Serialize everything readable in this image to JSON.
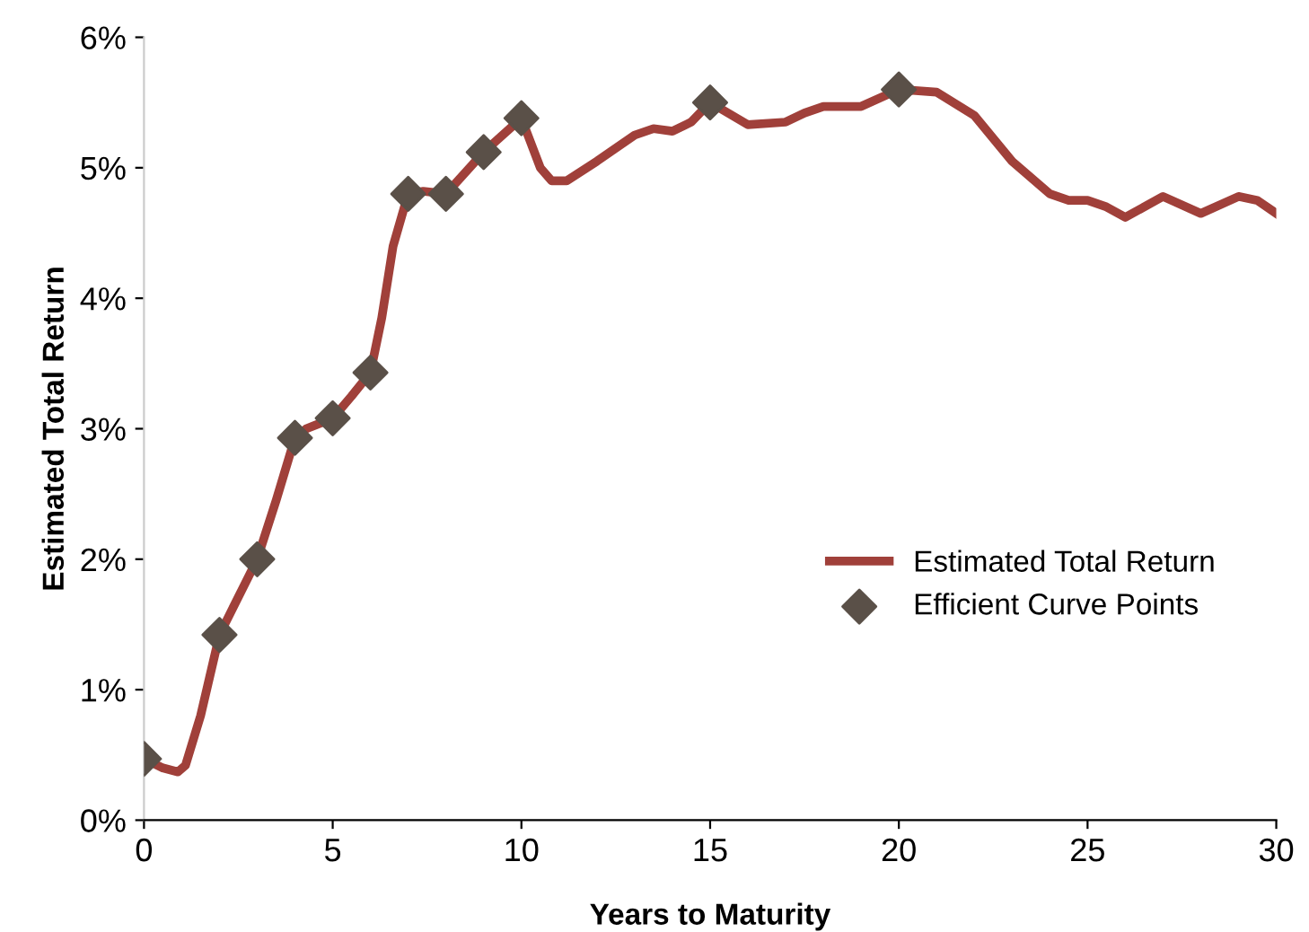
{
  "chart_data": {
    "type": "line",
    "xlabel": "Years to Maturity",
    "ylabel": "Estimated Total Return",
    "xlim": [
      0,
      30
    ],
    "xticks": [
      0,
      5,
      10,
      15,
      20,
      25,
      30
    ],
    "ylim": [
      0,
      6
    ],
    "yticks": [
      {
        "value": 0,
        "label": "0%"
      },
      {
        "value": 1,
        "label": "1%"
      },
      {
        "value": 2,
        "label": "2%"
      },
      {
        "value": 3,
        "label": "3%"
      },
      {
        "value": 4,
        "label": "4%"
      },
      {
        "value": 5,
        "label": "5%"
      },
      {
        "value": 6,
        "label": "6%"
      }
    ],
    "grid": false,
    "legend": "right",
    "series": [
      {
        "name": "Estimated Total Return",
        "color": "#a0403a",
        "marker": "none",
        "line_style": "solid",
        "x": [
          0,
          0.5,
          0.9,
          1.1,
          1.5,
          2,
          3,
          3.5,
          4,
          4.3,
          5,
          5.5,
          6,
          6.3,
          6.6,
          7,
          7.4,
          8,
          9,
          10,
          10.5,
          10.8,
          11.2,
          12,
          13,
          13.5,
          14,
          14.5,
          15,
          16,
          17,
          17.5,
          18,
          19,
          20,
          21,
          22,
          23,
          24,
          24.5,
          25,
          25.5,
          26,
          27,
          28,
          29,
          29.5,
          30
        ],
        "values": [
          0.47,
          0.4,
          0.37,
          0.42,
          0.8,
          1.42,
          2.0,
          2.45,
          2.93,
          3.0,
          3.08,
          3.25,
          3.43,
          3.85,
          4.4,
          4.8,
          4.82,
          4.8,
          5.12,
          5.38,
          5.0,
          4.9,
          4.9,
          5.05,
          5.25,
          5.3,
          5.28,
          5.35,
          5.5,
          5.33,
          5.35,
          5.42,
          5.47,
          5.47,
          5.6,
          5.58,
          5.4,
          5.05,
          4.8,
          4.75,
          4.75,
          4.7,
          4.62,
          4.78,
          4.65,
          4.78,
          4.75,
          4.65
        ]
      },
      {
        "name": "Efficient Curve Points",
        "type": "scatter",
        "color": "#5a5048",
        "marker": "diamond",
        "x": [
          0,
          2,
          3,
          4,
          5,
          6,
          7,
          8,
          9,
          10,
          15,
          20
        ],
        "values": [
          0.47,
          1.42,
          2.0,
          2.93,
          3.08,
          3.43,
          4.8,
          4.8,
          5.12,
          5.38,
          5.5,
          5.6
        ]
      }
    ]
  }
}
